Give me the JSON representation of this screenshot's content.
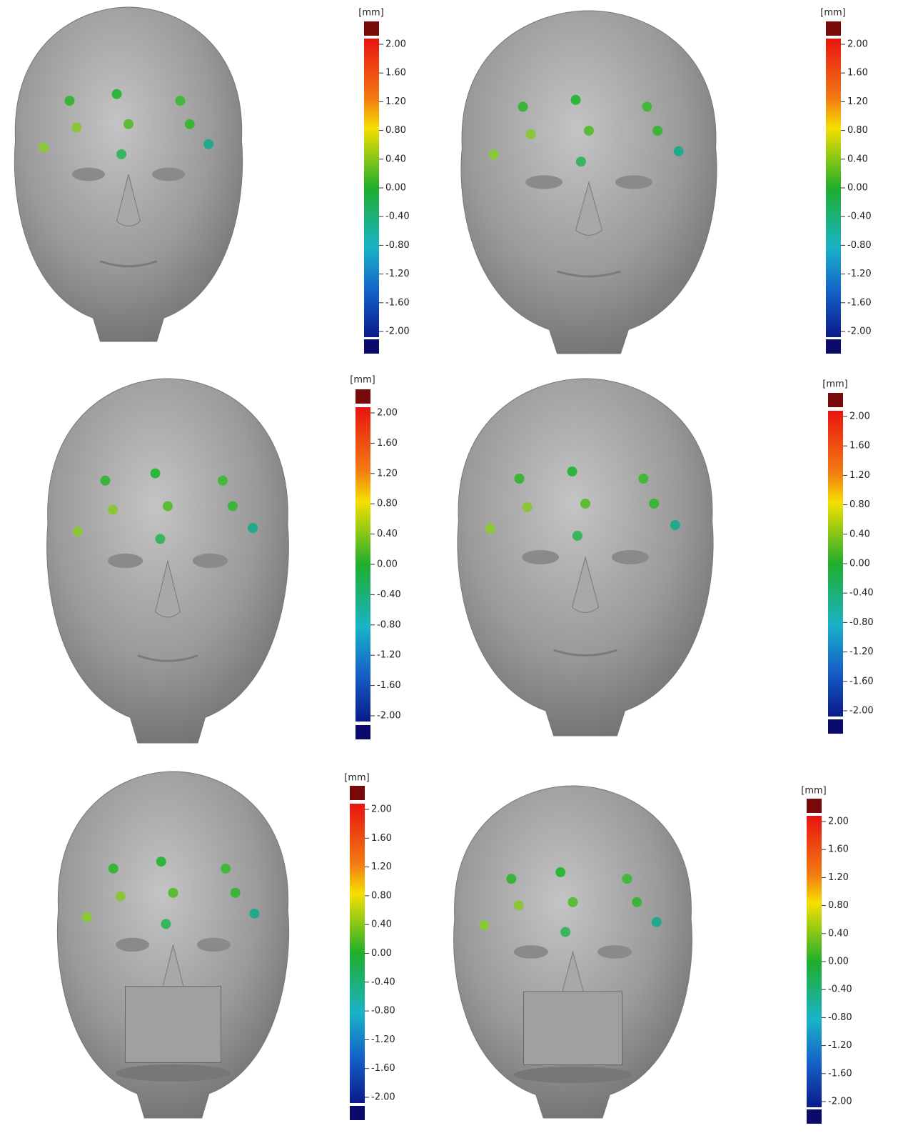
{
  "panels": [
    {
      "unit": "[mm]",
      "ticks": [
        {
          "value": 2,
          "label": "2.00"
        },
        {
          "value": 1.6,
          "label": "1.60"
        },
        {
          "value": 1.2,
          "label": "1.20"
        },
        {
          "value": 0.8,
          "label": "0.80"
        },
        {
          "value": 0.4,
          "label": "0.40"
        },
        {
          "value": 0,
          "label": "0.00"
        },
        {
          "value": -0.4,
          "label": "-0.40"
        },
        {
          "value": -0.8,
          "label": "-0.80"
        },
        {
          "value": -1.2,
          "label": "-1.20"
        },
        {
          "value": -1.6,
          "label": "-1.60"
        },
        {
          "value": -2,
          "label": "-2.00"
        }
      ]
    },
    {
      "unit": "[mm]",
      "ticks": [
        {
          "value": 2,
          "label": "2.00"
        },
        {
          "value": 1.6,
          "label": "1.60"
        },
        {
          "value": 1.2,
          "label": "1.20"
        },
        {
          "value": 0.8,
          "label": "0.80"
        },
        {
          "value": 0.4,
          "label": "0.40"
        },
        {
          "value": 0,
          "label": "0.00"
        },
        {
          "value": -0.4,
          "label": "-0.40"
        },
        {
          "value": -0.8,
          "label": "-0.80"
        },
        {
          "value": -1.2,
          "label": "-1.20"
        },
        {
          "value": -1.6,
          "label": "-1.60"
        },
        {
          "value": -2,
          "label": "-2.00"
        }
      ]
    },
    {
      "unit": "[mm]",
      "ticks": [
        {
          "value": 2,
          "label": "2.00"
        },
        {
          "value": 1.6,
          "label": "1.60"
        },
        {
          "value": 1.2,
          "label": "1.20"
        },
        {
          "value": 0.8,
          "label": "0.80"
        },
        {
          "value": 0.4,
          "label": "0.40"
        },
        {
          "value": 0,
          "label": "0.00"
        },
        {
          "value": -0.4,
          "label": "-0.40"
        },
        {
          "value": -0.8,
          "label": "-0.80"
        },
        {
          "value": -1.2,
          "label": "-1.20"
        },
        {
          "value": -1.6,
          "label": "-1.60"
        },
        {
          "value": -2,
          "label": "-2.00"
        }
      ]
    },
    {
      "unit": "[mm]",
      "ticks": [
        {
          "value": 2,
          "label": "2.00"
        },
        {
          "value": 1.6,
          "label": "1.60"
        },
        {
          "value": 1.2,
          "label": "1.20"
        },
        {
          "value": 0.8,
          "label": "0.80"
        },
        {
          "value": 0.4,
          "label": "0.40"
        },
        {
          "value": 0,
          "label": "0.00"
        },
        {
          "value": -0.4,
          "label": "-0.40"
        },
        {
          "value": -0.8,
          "label": "-0.80"
        },
        {
          "value": -1.2,
          "label": "-1.20"
        },
        {
          "value": -1.6,
          "label": "-1.60"
        },
        {
          "value": -2,
          "label": "-2.00"
        }
      ]
    },
    {
      "unit": "[mm]",
      "ticks": [
        {
          "value": 2,
          "label": "2.00"
        },
        {
          "value": 1.6,
          "label": "1.60"
        },
        {
          "value": 1.2,
          "label": "1.20"
        },
        {
          "value": 0.8,
          "label": "0.80"
        },
        {
          "value": 0.4,
          "label": "0.40"
        },
        {
          "value": 0,
          "label": "0.00"
        },
        {
          "value": -0.4,
          "label": "-0.40"
        },
        {
          "value": -0.8,
          "label": "-0.80"
        },
        {
          "value": -1.2,
          "label": "-1.20"
        },
        {
          "value": -1.6,
          "label": "-1.60"
        },
        {
          "value": -2,
          "label": "-2.00"
        }
      ]
    },
    {
      "unit": "[mm]",
      "ticks": [
        {
          "value": 2,
          "label": "2.00"
        },
        {
          "value": 1.6,
          "label": "1.60"
        },
        {
          "value": 1.2,
          "label": "1.20"
        },
        {
          "value": 0.8,
          "label": "0.80"
        },
        {
          "value": 0.4,
          "label": "0.40"
        },
        {
          "value": 0,
          "label": "0.00"
        },
        {
          "value": -0.4,
          "label": "-0.40"
        },
        {
          "value": -0.8,
          "label": "-0.80"
        },
        {
          "value": -1.2,
          "label": "-1.20"
        },
        {
          "value": -1.6,
          "label": "-1.60"
        },
        {
          "value": -2,
          "label": "-2.00"
        }
      ]
    }
  ]
}
